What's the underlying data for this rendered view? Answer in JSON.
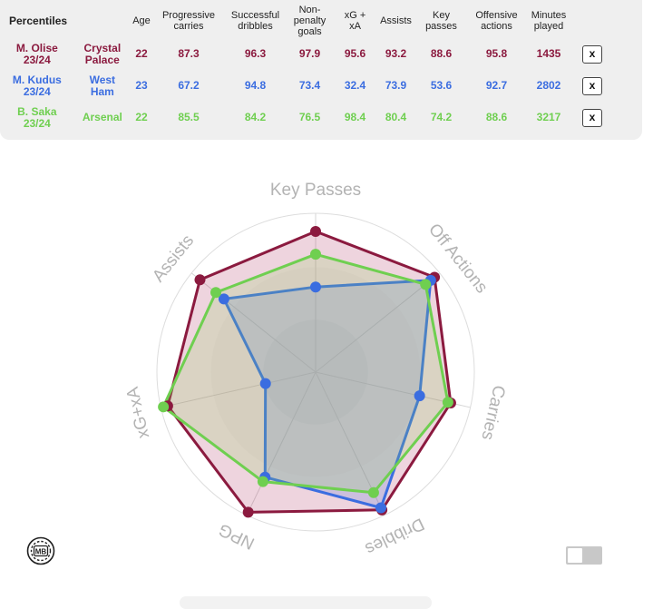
{
  "table": {
    "title": "Percentiles",
    "headers": [
      [
        "Age"
      ],
      [
        "Progressive",
        "carries"
      ],
      [
        "Successful",
        "dribbles"
      ],
      [
        "Non-",
        "penalty",
        "goals"
      ],
      [
        "xG +",
        "xA"
      ],
      [
        "Assists"
      ],
      [
        "Key",
        "passes"
      ],
      [
        "Offensive",
        "actions"
      ],
      [
        "Minutes",
        "played"
      ]
    ],
    "rows": [
      {
        "player": [
          "M. Olise",
          "23/24"
        ],
        "team": [
          "Crystal",
          "Palace"
        ],
        "color": "#8b1a3f",
        "values": [
          "22",
          "87.3",
          "96.3",
          "97.9",
          "95.6",
          "93.2",
          "88.6",
          "95.8",
          "1435"
        ],
        "remove": "x"
      },
      {
        "player": [
          "M. Kudus",
          "23/24"
        ],
        "team": [
          "West",
          "Ham"
        ],
        "color": "#3b6de0",
        "values": [
          "23",
          "67.2",
          "94.8",
          "73.4",
          "32.4",
          "73.9",
          "53.6",
          "92.7",
          "2802"
        ],
        "remove": "x"
      },
      {
        "player": [
          "B. Saka",
          "23/24"
        ],
        "team": [
          "Arsenal"
        ],
        "color": "#6fcf50",
        "values": [
          "22",
          "85.5",
          "84.2",
          "76.5",
          "98.4",
          "80.4",
          "74.2",
          "88.6",
          "3217"
        ],
        "remove": "x"
      }
    ]
  },
  "chart_data": {
    "type": "radar",
    "axes": [
      "Key Passes",
      "Off Actions",
      "Carries",
      "Dribbles",
      "NPG",
      "xG+xA",
      "Assists"
    ],
    "range": [
      0,
      100
    ],
    "grid": true,
    "series": [
      {
        "name": "M. Olise",
        "color": "#8b1a3f",
        "fill": "rgba(170,40,90,0.20)",
        "values": [
          88.6,
          95.8,
          87.3,
          96.3,
          97.9,
          95.6,
          93.2
        ]
      },
      {
        "name": "M. Kudus",
        "color": "#3b6de0",
        "fill": "rgba(80,120,220,0.22)",
        "values": [
          53.6,
          92.7,
          67.2,
          94.8,
          73.4,
          32.4,
          73.9
        ]
      },
      {
        "name": "B. Saka",
        "color": "#6fcf50",
        "fill": "rgba(140,210,90,0.20)",
        "values": [
          74.2,
          88.6,
          85.5,
          84.2,
          76.5,
          98.4,
          80.4
        ]
      }
    ]
  },
  "logo": {
    "text": "MB",
    "icon": "mb-logo-icon"
  },
  "toggle": {
    "state": "off"
  }
}
